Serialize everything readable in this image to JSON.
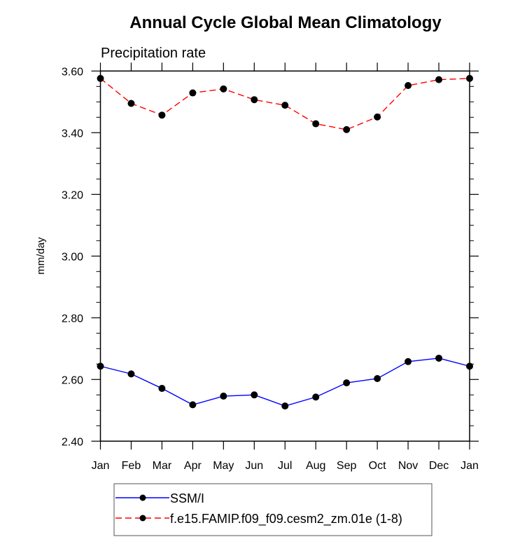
{
  "chart_data": {
    "type": "line",
    "title": "Annual Cycle Global Mean Climatology",
    "subtitle": "Precipitation rate",
    "xlabel": "",
    "ylabel": "mm/day",
    "categories": [
      "Jan",
      "Feb",
      "Mar",
      "Apr",
      "May",
      "Jun",
      "Jul",
      "Aug",
      "Sep",
      "Oct",
      "Nov",
      "Dec",
      "Jan"
    ],
    "ylim": [
      2.4,
      3.6
    ],
    "yticks": [
      2.4,
      2.6,
      2.8,
      3.0,
      3.2,
      3.4,
      3.6
    ],
    "ytick_labels": [
      "2.40",
      "2.60",
      "2.80",
      "3.00",
      "3.20",
      "3.40",
      "3.60"
    ],
    "y_minor_step": 0.05,
    "grid": false,
    "legend_position": "bottom",
    "series": [
      {
        "name": "SSM/I",
        "color": "#0000ff",
        "dash": "solid",
        "marker": "filled-circle",
        "values": [
          2.643,
          2.618,
          2.571,
          2.518,
          2.546,
          2.55,
          2.514,
          2.543,
          2.589,
          2.603,
          2.658,
          2.669,
          2.643
        ]
      },
      {
        "name": "f.e15.FAMIP.f09_f09.cesm2_zm.01e (1-8)",
        "color": "#ff0000",
        "dash": "dashed",
        "marker": "filled-circle",
        "values": [
          3.576,
          3.495,
          3.457,
          3.529,
          3.542,
          3.507,
          3.489,
          3.429,
          3.41,
          3.451,
          3.553,
          3.572,
          3.576
        ]
      }
    ]
  }
}
